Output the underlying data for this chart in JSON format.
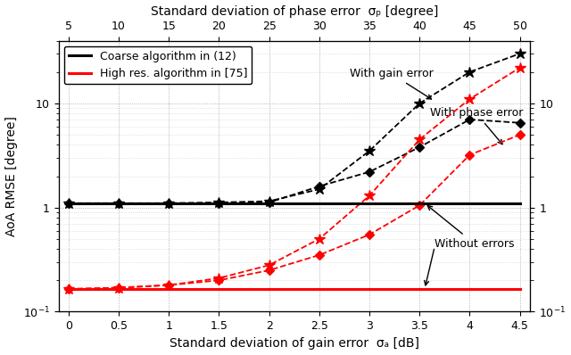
{
  "title_top": "Standard deviation of phase error  σₚ [degree]",
  "xlabel": "Standard deviation of gain error  σₐ [dB]",
  "ylabel": "AoA RMSE [degree]",
  "x_gain": [
    0,
    0.5,
    1.0,
    1.5,
    2.0,
    2.5,
    3.0,
    3.5,
    4.0,
    4.5
  ],
  "x_phase_ticks": [
    5,
    10,
    15,
    20,
    25,
    30,
    35,
    40,
    45,
    50
  ],
  "black_baseline": [
    1.1,
    1.1,
    1.1,
    1.1,
    1.1,
    1.1,
    1.1,
    1.1,
    1.1,
    1.1
  ],
  "red_baseline": [
    0.165,
    0.165,
    0.165,
    0.165,
    0.165,
    0.165,
    0.165,
    0.165,
    0.165,
    0.165
  ],
  "black_gain_star": [
    1.1,
    1.1,
    1.1,
    1.12,
    1.15,
    1.5,
    3.5,
    10.0,
    20.0,
    30.0
  ],
  "black_phase_diamond": [
    1.1,
    1.1,
    1.1,
    1.1,
    1.12,
    1.6,
    2.2,
    3.8,
    7.0,
    6.5
  ],
  "red_gain_star": [
    0.165,
    0.17,
    0.18,
    0.21,
    0.28,
    0.5,
    1.3,
    4.5,
    11.0,
    22.0
  ],
  "red_phase_diamond": [
    0.165,
    0.17,
    0.18,
    0.2,
    0.25,
    0.35,
    0.55,
    1.05,
    3.2,
    5.0
  ],
  "background_color": "#ffffff",
  "grid_color": "#888888"
}
